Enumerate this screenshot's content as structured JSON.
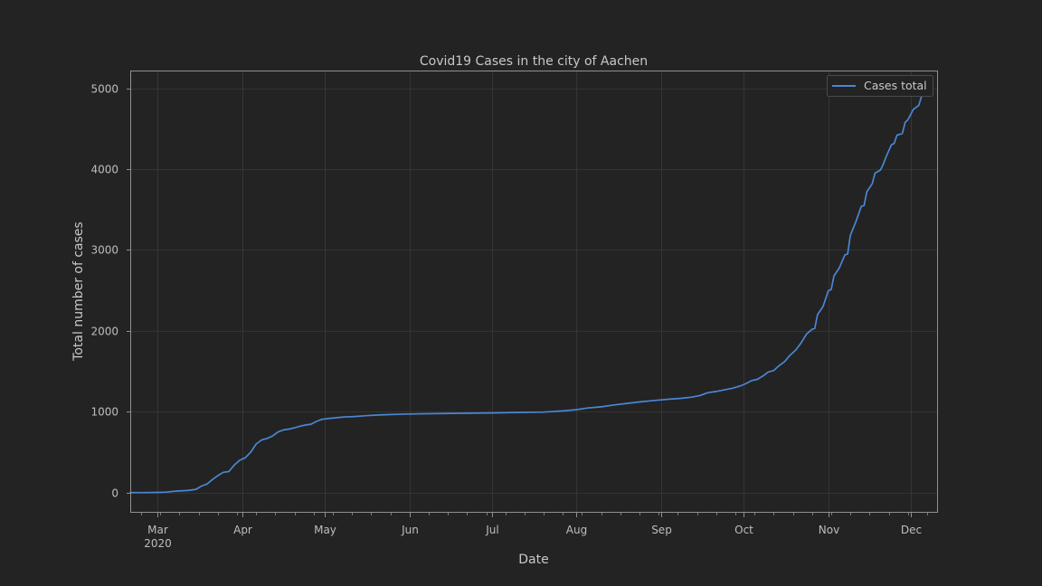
{
  "chart_data": {
    "type": "line",
    "title": "Covid19 Cases in the city of Aachen",
    "xlabel": "Date",
    "ylabel": "Total number of cases",
    "x_range": [
      "2020-02-20",
      "2020-12-11"
    ],
    "ylim": [
      -250,
      5220
    ],
    "y_ticks": [
      0,
      1000,
      2000,
      3000,
      4000,
      5000
    ],
    "x_ticks": [
      {
        "date": "2020-03-01",
        "label": "Mar",
        "sublabel": "2020"
      },
      {
        "date": "2020-04-01",
        "label": "Apr",
        "sublabel": ""
      },
      {
        "date": "2020-05-01",
        "label": "May",
        "sublabel": ""
      },
      {
        "date": "2020-06-01",
        "label": "Jun",
        "sublabel": ""
      },
      {
        "date": "2020-07-01",
        "label": "Jul",
        "sublabel": ""
      },
      {
        "date": "2020-08-01",
        "label": "Aug",
        "sublabel": ""
      },
      {
        "date": "2020-09-01",
        "label": "Sep",
        "sublabel": ""
      },
      {
        "date": "2020-10-01",
        "label": "Oct",
        "sublabel": ""
      },
      {
        "date": "2020-11-01",
        "label": "Nov",
        "sublabel": ""
      },
      {
        "date": "2020-12-01",
        "label": "Dec",
        "sublabel": ""
      }
    ],
    "grid": true,
    "legend_position": "top-right",
    "colors": {
      "background": "#232323",
      "line": "#4a86d4",
      "grid": "#3a3a3a",
      "spine": "#909090"
    },
    "series": [
      {
        "name": "Cases total",
        "points": [
          [
            "2020-02-20",
            0
          ],
          [
            "2020-02-25",
            0
          ],
          [
            "2020-03-01",
            2
          ],
          [
            "2020-03-04",
            5
          ],
          [
            "2020-03-08",
            18
          ],
          [
            "2020-03-12",
            25
          ],
          [
            "2020-03-15",
            40
          ],
          [
            "2020-03-17",
            80
          ],
          [
            "2020-03-19",
            105
          ],
          [
            "2020-03-21",
            160
          ],
          [
            "2020-03-23",
            210
          ],
          [
            "2020-03-25",
            250
          ],
          [
            "2020-03-27",
            260
          ],
          [
            "2020-03-29",
            340
          ],
          [
            "2020-03-31",
            400
          ],
          [
            "2020-04-02",
            430
          ],
          [
            "2020-04-04",
            500
          ],
          [
            "2020-04-06",
            600
          ],
          [
            "2020-04-08",
            650
          ],
          [
            "2020-04-10",
            670
          ],
          [
            "2020-04-12",
            700
          ],
          [
            "2020-04-14",
            750
          ],
          [
            "2020-04-16",
            775
          ],
          [
            "2020-04-18",
            785
          ],
          [
            "2020-04-20",
            800
          ],
          [
            "2020-04-22",
            820
          ],
          [
            "2020-04-24",
            835
          ],
          [
            "2020-04-26",
            845
          ],
          [
            "2020-04-28",
            880
          ],
          [
            "2020-04-30",
            905
          ],
          [
            "2020-05-02",
            915
          ],
          [
            "2020-05-05",
            925
          ],
          [
            "2020-05-08",
            935
          ],
          [
            "2020-05-12",
            940
          ],
          [
            "2020-05-16",
            950
          ],
          [
            "2020-05-20",
            958
          ],
          [
            "2020-05-25",
            965
          ],
          [
            "2020-06-01",
            972
          ],
          [
            "2020-06-10",
            976
          ],
          [
            "2020-06-20",
            980
          ],
          [
            "2020-07-01",
            985
          ],
          [
            "2020-07-10",
            990
          ],
          [
            "2020-07-20",
            995
          ],
          [
            "2020-07-27",
            1010
          ],
          [
            "2020-08-01",
            1025
          ],
          [
            "2020-08-05",
            1045
          ],
          [
            "2020-08-10",
            1060
          ],
          [
            "2020-08-15",
            1085
          ],
          [
            "2020-08-20",
            1105
          ],
          [
            "2020-08-25",
            1125
          ],
          [
            "2020-08-30",
            1140
          ],
          [
            "2020-09-04",
            1155
          ],
          [
            "2020-09-08",
            1165
          ],
          [
            "2020-09-12",
            1180
          ],
          [
            "2020-09-15",
            1200
          ],
          [
            "2020-09-18",
            1235
          ],
          [
            "2020-09-21",
            1250
          ],
          [
            "2020-09-24",
            1270
          ],
          [
            "2020-09-27",
            1290
          ],
          [
            "2020-09-30",
            1320
          ],
          [
            "2020-10-02",
            1350
          ],
          [
            "2020-10-04",
            1385
          ],
          [
            "2020-10-06",
            1400
          ],
          [
            "2020-10-08",
            1440
          ],
          [
            "2020-10-10",
            1490
          ],
          [
            "2020-10-12",
            1510
          ],
          [
            "2020-10-14",
            1570
          ],
          [
            "2020-10-16",
            1620
          ],
          [
            "2020-10-18",
            1700
          ],
          [
            "2020-10-20",
            1760
          ],
          [
            "2020-10-22",
            1850
          ],
          [
            "2020-10-24",
            1960
          ],
          [
            "2020-10-26",
            2020
          ],
          [
            "2020-10-27",
            2030
          ],
          [
            "2020-10-28",
            2200
          ],
          [
            "2020-10-30",
            2300
          ],
          [
            "2020-11-01",
            2500
          ],
          [
            "2020-11-02",
            2510
          ],
          [
            "2020-11-03",
            2680
          ],
          [
            "2020-11-05",
            2780
          ],
          [
            "2020-11-07",
            2940
          ],
          [
            "2020-11-08",
            2950
          ],
          [
            "2020-11-09",
            3180
          ],
          [
            "2020-11-11",
            3350
          ],
          [
            "2020-11-13",
            3540
          ],
          [
            "2020-11-14",
            3550
          ],
          [
            "2020-11-15",
            3720
          ],
          [
            "2020-11-17",
            3820
          ],
          [
            "2020-11-18",
            3950
          ],
          [
            "2020-11-20",
            3990
          ],
          [
            "2020-11-21",
            4060
          ],
          [
            "2020-11-22",
            4150
          ],
          [
            "2020-11-24",
            4300
          ],
          [
            "2020-11-25",
            4320
          ],
          [
            "2020-11-26",
            4420
          ],
          [
            "2020-11-28",
            4440
          ],
          [
            "2020-11-29",
            4580
          ],
          [
            "2020-11-30",
            4610
          ],
          [
            "2020-12-02",
            4740
          ],
          [
            "2020-12-04",
            4790
          ],
          [
            "2020-12-05",
            4900
          ],
          [
            "2020-12-07",
            4970
          ],
          [
            "2020-12-09",
            5050
          ]
        ]
      }
    ]
  }
}
